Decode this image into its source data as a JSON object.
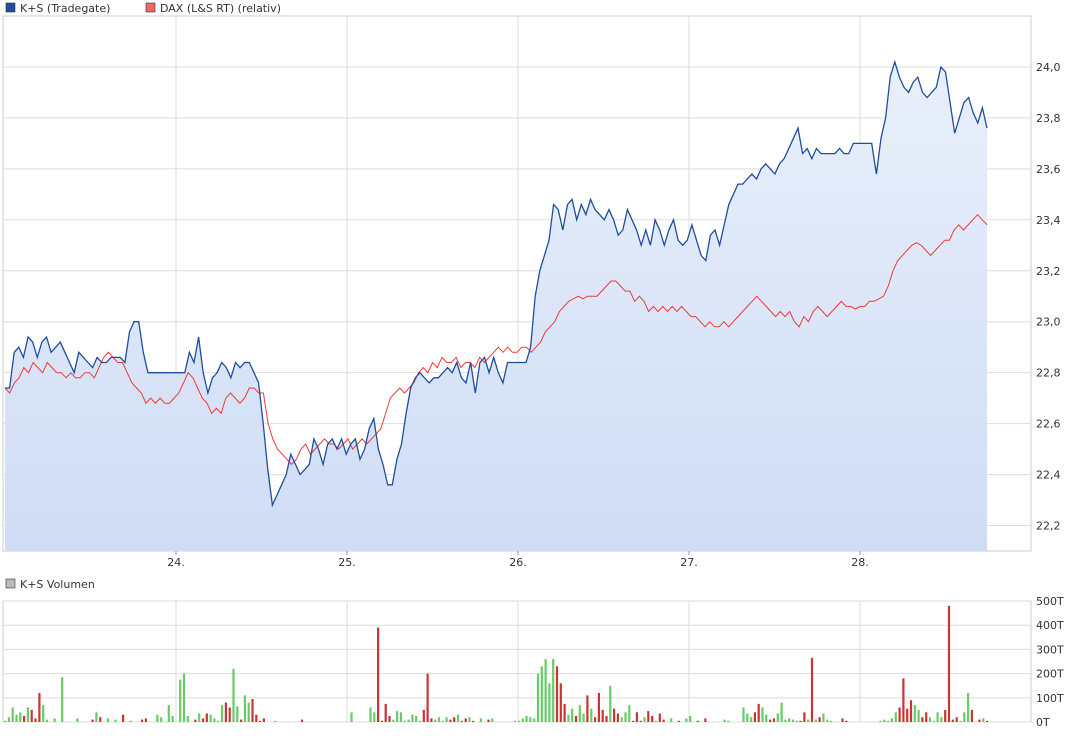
{
  "legend": {
    "series1": "K+S (Tradegate)",
    "series2": "DAX (L&S RT)",
    "series2_note": "(relativ)",
    "volume": "K+S Volumen"
  },
  "colors": {
    "ks_line": "#1f4e9c",
    "ks_fill_top": "#e9f0fb",
    "ks_fill_bottom": "#cfdcf5",
    "dax_line": "#ee3b3b",
    "volume_up": "#66cc66",
    "volume_down": "#cc3333",
    "grid": "#dddddd"
  },
  "chart_data": [
    {
      "type": "line",
      "x_labels": [
        "24.",
        "25.",
        "26.",
        "27.",
        "28."
      ],
      "ylim": [
        22.1,
        24.2
      ],
      "y_ticks": [
        "22,2",
        "22,4",
        "22,6",
        "22,8",
        "23,0",
        "23,2",
        "23,4",
        "23,6",
        "23,8",
        "24,0"
      ],
      "grid": true,
      "legend_position": "top-left",
      "series": [
        {
          "name": "K+S (Tradegate)",
          "values": [
            22.74,
            22.74,
            22.88,
            22.9,
            22.86,
            22.94,
            22.92,
            22.86,
            22.92,
            22.94,
            22.88,
            22.9,
            22.92,
            22.88,
            22.84,
            22.8,
            22.88,
            22.86,
            22.84,
            22.82,
            22.86,
            22.84,
            22.84,
            22.86,
            22.86,
            22.86,
            22.84,
            22.96,
            23.0,
            23.0,
            22.88,
            22.8,
            22.8,
            22.8,
            22.8,
            22.8,
            22.8,
            22.8,
            22.8,
            22.8,
            22.88,
            22.84,
            22.94,
            22.8,
            22.72,
            22.78,
            22.8,
            22.84,
            22.82,
            22.78,
            22.84,
            22.82,
            22.84,
            22.84,
            22.8,
            22.76,
            22.6,
            22.42,
            22.28,
            22.32,
            22.36,
            22.4,
            22.48,
            22.44,
            22.4,
            22.42,
            22.44,
            22.54,
            22.5,
            22.44,
            22.52,
            22.54,
            22.5,
            22.54,
            22.48,
            22.52,
            22.54,
            22.46,
            22.5,
            22.58,
            22.62,
            22.5,
            22.44,
            22.36,
            22.36,
            22.46,
            22.52,
            22.64,
            22.74,
            22.78,
            22.8,
            22.78,
            22.76,
            22.78,
            22.78,
            22.8,
            22.82,
            22.8,
            22.84,
            22.78,
            22.76,
            22.84,
            22.72,
            22.84,
            22.86,
            22.8,
            22.86,
            22.8,
            22.76,
            22.84,
            22.84,
            22.84,
            22.84,
            22.84,
            22.9,
            23.1,
            23.2,
            23.26,
            23.32,
            23.46,
            23.44,
            23.36,
            23.46,
            23.48,
            23.4,
            23.46,
            23.42,
            23.48,
            23.44,
            23.42,
            23.4,
            23.44,
            23.4,
            23.34,
            23.36,
            23.44,
            23.4,
            23.36,
            23.3,
            23.36,
            23.3,
            23.4,
            23.36,
            23.3,
            23.36,
            23.4,
            23.32,
            23.3,
            23.32,
            23.38,
            23.32,
            23.26,
            23.24,
            23.34,
            23.36,
            23.3,
            23.38,
            23.46,
            23.5,
            23.54,
            23.54,
            23.56,
            23.58,
            23.56,
            23.6,
            23.62,
            23.6,
            23.58,
            23.62,
            23.64,
            23.68,
            23.72,
            23.76,
            23.66,
            23.68,
            23.64,
            23.68,
            23.66,
            23.66,
            23.66,
            23.66,
            23.68,
            23.66,
            23.66,
            23.7,
            23.7,
            23.7,
            23.7,
            23.7,
            23.58,
            23.72,
            23.8,
            23.96,
            24.02,
            23.96,
            23.92,
            23.9,
            23.94,
            23.96,
            23.9,
            23.88,
            23.9,
            23.92,
            24.0,
            23.98,
            23.86,
            23.74,
            23.8,
            23.86,
            23.88,
            23.82,
            23.78,
            23.84,
            23.76
          ]
        },
        {
          "name": "DAX (L&S RT)",
          "values": [
            22.74,
            22.72,
            22.76,
            22.78,
            22.82,
            22.8,
            22.84,
            22.82,
            22.8,
            22.84,
            22.82,
            22.8,
            22.8,
            22.78,
            22.8,
            22.78,
            22.78,
            22.8,
            22.8,
            22.78,
            22.82,
            22.86,
            22.88,
            22.86,
            22.84,
            22.84,
            22.8,
            22.76,
            22.74,
            22.72,
            22.68,
            22.7,
            22.68,
            22.7,
            22.68,
            22.68,
            22.7,
            22.72,
            22.76,
            22.8,
            22.78,
            22.74,
            22.7,
            22.68,
            22.64,
            22.66,
            22.64,
            22.7,
            22.72,
            22.7,
            22.68,
            22.7,
            22.74,
            22.74,
            22.72,
            22.72,
            22.6,
            22.54,
            22.5,
            22.48,
            22.46,
            22.44,
            22.46,
            22.5,
            22.52,
            22.48,
            22.5,
            22.52,
            22.54,
            22.52,
            22.52,
            22.5,
            22.52,
            22.54,
            22.5,
            22.52,
            22.54,
            22.52,
            22.54,
            22.56,
            22.58,
            22.64,
            22.7,
            22.72,
            22.74,
            22.72,
            22.74,
            22.76,
            22.8,
            22.82,
            22.8,
            22.84,
            22.82,
            22.86,
            22.84,
            22.84,
            22.86,
            22.82,
            22.84,
            22.84,
            22.82,
            22.86,
            22.84,
            22.86,
            22.88,
            22.9,
            22.88,
            22.9,
            22.88,
            22.88,
            22.9,
            22.9,
            22.88,
            22.9,
            22.92,
            22.96,
            22.98,
            23.0,
            23.04,
            23.06,
            23.08,
            23.09,
            23.1,
            23.09,
            23.1,
            23.1,
            23.1,
            23.12,
            23.14,
            23.16,
            23.16,
            23.14,
            23.12,
            23.12,
            23.08,
            23.1,
            23.08,
            23.04,
            23.06,
            23.04,
            23.06,
            23.04,
            23.06,
            23.04,
            23.06,
            23.04,
            23.02,
            23.02,
            23.0,
            22.98,
            23.0,
            22.98,
            22.98,
            23.0,
            22.98,
            23.0,
            23.02,
            23.04,
            23.06,
            23.08,
            23.1,
            23.08,
            23.06,
            23.04,
            23.02,
            23.04,
            23.02,
            23.04,
            23.0,
            22.98,
            23.02,
            23.0,
            23.04,
            23.06,
            23.04,
            23.02,
            23.04,
            23.06,
            23.08,
            23.06,
            23.06,
            23.05,
            23.06,
            23.06,
            23.08,
            23.08,
            23.09,
            23.1,
            23.14,
            23.2,
            23.24,
            23.26,
            23.28,
            23.3,
            23.31,
            23.3,
            23.28,
            23.26,
            23.28,
            23.3,
            23.32,
            23.32,
            23.36,
            23.38,
            23.36,
            23.38,
            23.4,
            23.42,
            23.4,
            23.38
          ]
        }
      ]
    },
    {
      "type": "bar",
      "title": "K+S Volumen",
      "ylim": [
        0,
        500
      ],
      "y_ticks": [
        "0T",
        "100T",
        "200T",
        "300T",
        "400T",
        "500T"
      ],
      "grid": true,
      "series": [
        {
          "name": "K+S Volumen",
          "values": [
            5,
            20,
            60,
            30,
            40,
            25,
            60,
            50,
            15,
            120,
            70,
            10,
            0,
            15,
            0,
            185,
            0,
            0,
            0,
            15,
            0,
            0,
            0,
            10,
            40,
            20,
            0,
            15,
            0,
            10,
            0,
            30,
            0,
            5,
            0,
            0,
            10,
            15,
            0,
            0,
            30,
            20,
            0,
            70,
            25,
            0,
            175,
            200,
            25,
            0,
            10,
            35,
            15,
            35,
            30,
            15,
            5,
            70,
            80,
            60,
            220,
            65,
            10,
            110,
            80,
            95,
            30,
            5,
            15,
            0,
            0,
            5,
            0,
            0,
            0,
            0,
            0,
            0,
            10,
            0,
            0,
            0,
            0,
            0,
            0,
            0,
            0,
            0,
            0,
            0,
            0,
            40,
            0,
            0,
            0,
            0,
            60,
            40,
            390,
            5,
            75,
            25,
            10,
            45,
            40,
            5,
            10,
            30,
            25,
            5,
            50,
            200,
            15,
            10,
            20,
            5,
            20,
            10,
            20,
            30,
            5,
            15,
            20,
            5,
            0,
            15,
            0,
            10,
            15,
            0,
            0,
            0,
            0,
            0,
            5,
            5,
            15,
            25,
            20,
            15,
            200,
            230,
            260,
            160,
            260,
            230,
            160,
            75,
            30,
            55,
            25,
            70,
            35,
            110,
            55,
            20,
            120,
            50,
            25,
            150,
            55,
            35,
            20,
            40,
            70,
            5,
            40,
            5,
            20,
            45,
            25,
            5,
            35,
            10,
            0,
            15,
            0,
            5,
            0,
            15,
            25,
            0,
            5,
            0,
            15,
            0,
            0,
            0,
            0,
            10,
            5,
            0,
            0,
            0,
            60,
            35,
            20,
            40,
            75,
            60,
            30,
            10,
            15,
            35,
            80,
            10,
            15,
            10,
            5,
            5,
            40,
            10,
            265,
            10,
            20,
            35,
            10,
            5,
            0,
            0,
            15,
            5,
            0,
            0,
            0,
            0,
            0,
            0,
            0,
            0,
            5,
            10,
            5,
            15,
            40,
            60,
            180,
            55,
            90,
            70,
            50,
            20,
            40,
            20,
            5,
            40,
            20,
            50,
            480,
            10,
            20,
            5,
            40,
            120,
            50,
            0,
            10,
            15,
            5
          ]
        }
      ]
    }
  ]
}
